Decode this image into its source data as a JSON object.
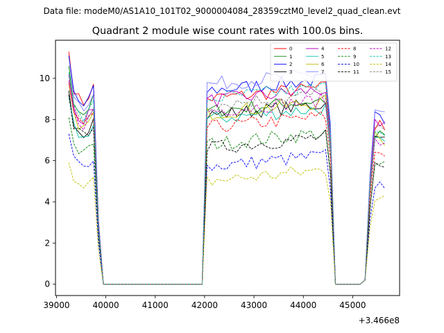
{
  "header": {
    "suptitle": "Data file: modeM0/AS1A10_101T02_9000004084_28359cztM0_level2_quad_clean.evt"
  },
  "chart_data": {
    "type": "line",
    "title": "Quadrant 2 module wise count rates with 100.0s bins.",
    "xlabel": "",
    "ylabel": "",
    "offset_label": "+3.466e8",
    "x_offset": 346600000,
    "xlim": [
      38980,
      45950
    ],
    "ylim": [
      -0.55,
      11.85
    ],
    "grid": false,
    "legend": {
      "placement": "top-right",
      "ncol": 4
    },
    "x_ticks": [
      {
        "value": 39000,
        "label": "39000"
      },
      {
        "value": 40000,
        "label": "40000"
      },
      {
        "value": 41000,
        "label": "41000"
      },
      {
        "value": 42000,
        "label": "42000"
      },
      {
        "value": 43000,
        "label": "43000"
      },
      {
        "value": 44000,
        "label": "44000"
      },
      {
        "value": 45000,
        "label": "45000"
      }
    ],
    "y_ticks": [
      {
        "value": 0,
        "label": "0"
      },
      {
        "value": 2,
        "label": "2"
      },
      {
        "value": 4,
        "label": "4"
      },
      {
        "value": 6,
        "label": "6"
      },
      {
        "value": 8,
        "label": "8"
      },
      {
        "value": 10,
        "label": "10"
      }
    ],
    "segment_start": [
      39250,
      42050,
      44650,
      45250,
      45650
    ],
    "series": [
      {
        "name": "0",
        "color": "#ff0000",
        "dash": "solid",
        "level": 9.0,
        "start": 11.3
      },
      {
        "name": "1",
        "color": "#008000",
        "dash": "solid",
        "level": 8.4,
        "start": 10.6
      },
      {
        "name": "2",
        "color": "#0000ff",
        "dash": "solid",
        "level": 9.4,
        "start": 11.1
      },
      {
        "name": "3",
        "color": "#000000",
        "dash": "solid",
        "level": 8.2,
        "start": 9.4
      },
      {
        "name": "4",
        "color": "#bf00bf",
        "dash": "solid",
        "level": 8.9,
        "start": 10.2
      },
      {
        "name": "5",
        "color": "#00bfa5",
        "dash": "solid",
        "level": 8.0,
        "start": 9.1
      },
      {
        "name": "6",
        "color": "#bfbf00",
        "dash": "solid",
        "level": 8.3,
        "start": 9.7
      },
      {
        "name": "7",
        "color": "#8080ff",
        "dash": "solid",
        "level": 9.7,
        "start": 11.0
      },
      {
        "name": "8",
        "color": "#ff0000",
        "dash": "dashed",
        "level": 7.6,
        "start": 9.8
      },
      {
        "name": "9",
        "color": "#008000",
        "dash": "dashed",
        "level": 6.8,
        "start": 8.1
      },
      {
        "name": "10",
        "color": "#0000ff",
        "dash": "dashed",
        "level": 5.7,
        "start": 7.3
      },
      {
        "name": "11",
        "color": "#000000",
        "dash": "dashed",
        "level": 6.6,
        "start": 9.2
      },
      {
        "name": "12",
        "color": "#bf00bf",
        "dash": "dashed",
        "level": 8.4,
        "start": 9.9
      },
      {
        "name": "13",
        "color": "#00bfa5",
        "dash": "dashed",
        "level": 9.0,
        "start": 10.3
      },
      {
        "name": "14",
        "color": "#bfbf00",
        "dash": "dashed",
        "level": 5.0,
        "start": 5.9
      },
      {
        "name": "15",
        "color": "#808080",
        "dash": "dashed",
        "level": 8.7,
        "start": 10.1
      }
    ]
  }
}
